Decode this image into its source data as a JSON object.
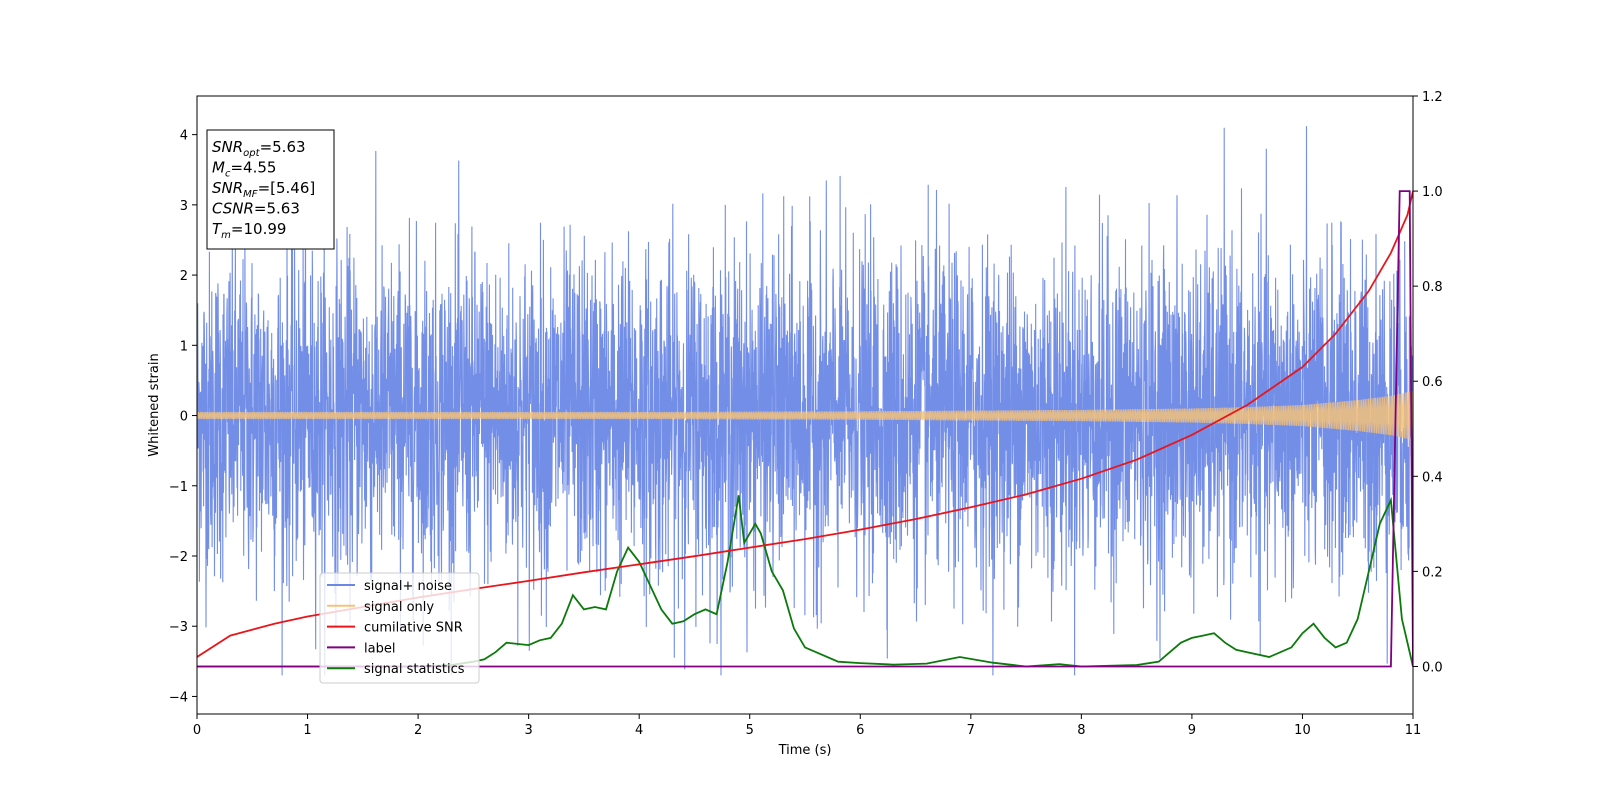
{
  "chart_data": {
    "type": "line",
    "title": "",
    "xlabel": "Time (s)",
    "ylabel": "Whitened strain",
    "xlim": [
      0,
      11
    ],
    "ylim": [
      -4.25,
      4.55
    ],
    "y2lim": [
      -0.1,
      1.2
    ],
    "grid": false,
    "legend_position": "lower-left",
    "x_ticks": [
      "0",
      "1",
      "2",
      "3",
      "4",
      "5",
      "6",
      "7",
      "8",
      "9",
      "10",
      "11"
    ],
    "y_ticks": [
      "4",
      "3",
      "2",
      "1",
      "0",
      "−1",
      "−2",
      "−3",
      "−4"
    ],
    "y2_ticks": [
      "1.2",
      "1.0",
      "0.8",
      "0.6",
      "0.4",
      "0.2",
      "0.0"
    ],
    "annotation": {
      "lines": [
        {
          "base": "SNR",
          "sub": "opt",
          "rest": "=5.63"
        },
        {
          "base": "M",
          "sub": "c",
          "rest": "=4.55"
        },
        {
          "base": "SNR",
          "sub": "MF",
          "rest": "=[5.46]"
        },
        {
          "base": "CSNR",
          "sub": "",
          "rest": "=5.63"
        },
        {
          "base": "T",
          "sub": "m",
          "rest": "=10.99"
        }
      ]
    },
    "series": [
      {
        "name": "signal+ noise",
        "color": "#6b88e6",
        "axis": "left",
        "description": "whitened noise, roughly gaussian with std ~1.2, peaks near ±4"
      },
      {
        "name": "signal only",
        "color": "#f5c27a",
        "axis": "left",
        "envelope": {
          "x": [
            0,
            2,
            4,
            6,
            7,
            8,
            9,
            9.5,
            10,
            10.5,
            10.8,
            11
          ],
          "amp": [
            0.05,
            0.05,
            0.05,
            0.06,
            0.07,
            0.08,
            0.1,
            0.12,
            0.15,
            0.22,
            0.28,
            0.35
          ]
        }
      },
      {
        "name": "cumilative SNR",
        "color": "#e8161b",
        "axis": "right",
        "x": [
          0,
          0.3,
          0.7,
          1,
          1.5,
          2,
          2.5,
          3,
          3.5,
          4,
          4.5,
          5,
          5.5,
          6,
          6.5,
          7,
          7.5,
          8,
          8.5,
          9,
          9.5,
          10,
          10.3,
          10.6,
          10.8,
          10.95,
          11
        ],
        "values": [
          0.02,
          0.065,
          0.09,
          0.105,
          0.125,
          0.145,
          0.163,
          0.18,
          0.198,
          0.215,
          0.232,
          0.25,
          0.268,
          0.288,
          0.31,
          0.335,
          0.362,
          0.395,
          0.435,
          0.487,
          0.55,
          0.63,
          0.7,
          0.79,
          0.87,
          0.95,
          1.0
        ]
      },
      {
        "name": "label",
        "color": "#800080",
        "axis": "right",
        "x": [
          0,
          10.8,
          10.88,
          10.97,
          11
        ],
        "values": [
          0,
          0,
          1.0,
          1.0,
          0
        ]
      },
      {
        "name": "signal statistics",
        "color": "#0b7a0b",
        "axis": "right",
        "x": [
          0,
          0.5,
          1,
          1.5,
          2,
          2.3,
          2.5,
          2.6,
          2.7,
          2.8,
          3.0,
          3.1,
          3.2,
          3.3,
          3.4,
          3.5,
          3.6,
          3.7,
          3.8,
          3.9,
          4.0,
          4.1,
          4.2,
          4.3,
          4.4,
          4.5,
          4.6,
          4.7,
          4.8,
          4.9,
          4.95,
          5.0,
          5.05,
          5.1,
          5.2,
          5.3,
          5.4,
          5.5,
          5.6,
          5.8,
          6.0,
          6.3,
          6.6,
          6.9,
          7.2,
          7.5,
          7.8,
          8.0,
          8.5,
          8.7,
          8.9,
          9.0,
          9.1,
          9.2,
          9.3,
          9.4,
          9.5,
          9.7,
          9.9,
          10.0,
          10.1,
          10.2,
          10.3,
          10.4,
          10.5,
          10.6,
          10.7,
          10.8,
          10.9,
          11
        ],
        "values": [
          0.0,
          0.0,
          0.0,
          0.0,
          0.0,
          0.003,
          0.01,
          0.015,
          0.03,
          0.05,
          0.045,
          0.055,
          0.06,
          0.09,
          0.15,
          0.12,
          0.125,
          0.12,
          0.2,
          0.25,
          0.22,
          0.17,
          0.12,
          0.09,
          0.095,
          0.11,
          0.12,
          0.11,
          0.22,
          0.36,
          0.26,
          0.28,
          0.3,
          0.28,
          0.2,
          0.16,
          0.08,
          0.04,
          0.03,
          0.01,
          0.007,
          0.004,
          0.006,
          0.02,
          0.008,
          0.0,
          0.005,
          0.0,
          0.003,
          0.01,
          0.05,
          0.06,
          0.065,
          0.07,
          0.05,
          0.035,
          0.03,
          0.02,
          0.04,
          0.07,
          0.09,
          0.06,
          0.04,
          0.05,
          0.1,
          0.2,
          0.3,
          0.35,
          0.1,
          0.0
        ]
      }
    ]
  }
}
